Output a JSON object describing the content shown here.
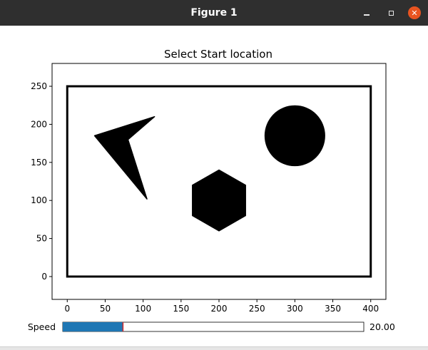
{
  "window": {
    "title": "Figure 1",
    "minimize_icon": "minimize-icon",
    "maximize_icon": "maximize-icon",
    "close_icon": "close-icon"
  },
  "colors": {
    "titlebar": "#2f2f2f",
    "close_button": "#e95420",
    "obstacle": "#000000",
    "slider_fill": "#1f77b4",
    "slider_marker": "#d62728"
  },
  "chart_data": {
    "type": "scatter",
    "title": "Select Start location",
    "xlabel": "",
    "ylabel": "",
    "xlim": [
      -20,
      420
    ],
    "ylim": [
      -30,
      280
    ],
    "xticks": [
      0,
      50,
      100,
      150,
      200,
      250,
      300,
      350,
      400
    ],
    "yticks": [
      0,
      50,
      100,
      150,
      200,
      250
    ],
    "grid": false,
    "boundary": {
      "x": [
        0,
        400
      ],
      "y": [
        0,
        250
      ]
    },
    "obstacles": [
      {
        "shape": "polygon",
        "label": "concave-quadrilateral",
        "points": [
          [
            36,
            185
          ],
          [
            115,
            210
          ],
          [
            80,
            180
          ],
          [
            105,
            102
          ]
        ]
      },
      {
        "shape": "polygon",
        "label": "hexagon",
        "points": [
          [
            200,
            140
          ],
          [
            235,
            120
          ],
          [
            235,
            80
          ],
          [
            200,
            60
          ],
          [
            165,
            80
          ],
          [
            165,
            120
          ]
        ]
      },
      {
        "shape": "circle",
        "label": "circle",
        "center": [
          300,
          185
        ],
        "radius": 40
      }
    ]
  },
  "slider": {
    "label": "Speed",
    "value": 20,
    "value_text": "20.00",
    "min": 0,
    "max": 100
  }
}
